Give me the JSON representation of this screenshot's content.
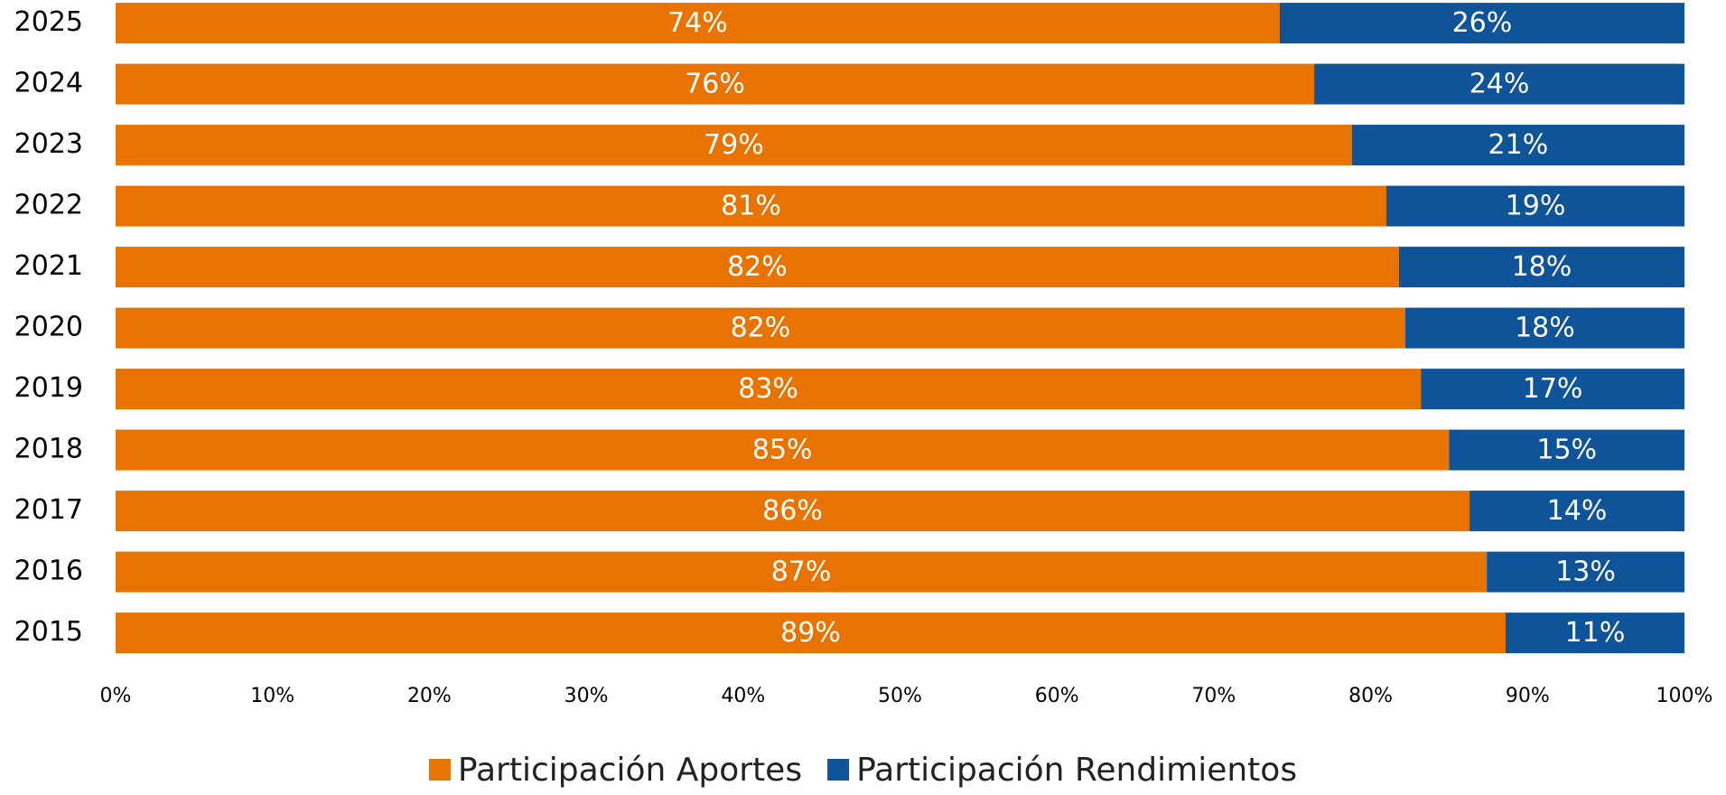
{
  "chart_data": {
    "type": "stacked_barh",
    "categories": [
      "2025",
      "2024",
      "2023",
      "2022",
      "2021",
      "2020",
      "2019",
      "2018",
      "2017",
      "2016",
      "2015"
    ],
    "series": [
      {
        "name": "Participación Aportes",
        "color": "#e97300",
        "values": [
          74.2,
          76.4,
          78.8,
          81.0,
          81.8,
          82.2,
          83.2,
          85.0,
          86.3,
          87.4,
          88.6
        ],
        "value_labels": [
          "74%",
          "76%",
          "79%",
          "81%",
          "82%",
          "82%",
          "83%",
          "85%",
          "86%",
          "87%",
          "89%"
        ]
      },
      {
        "name": "Participación Rendimientos",
        "color": "#0f5499",
        "values": [
          25.8,
          23.6,
          21.2,
          19.0,
          18.2,
          17.8,
          16.8,
          15.0,
          13.7,
          12.6,
          11.4
        ],
        "value_labels": [
          "26%",
          "24%",
          "21%",
          "19%",
          "18%",
          "18%",
          "17%",
          "15%",
          "14%",
          "13%",
          "11%"
        ]
      }
    ],
    "xlim": [
      0,
      100
    ],
    "xticks": [
      {
        "value": 0,
        "label": "0%"
      },
      {
        "value": 10,
        "label": "10%"
      },
      {
        "value": 20,
        "label": "20%"
      },
      {
        "value": 30,
        "label": "30%"
      },
      {
        "value": 40,
        "label": "40%"
      },
      {
        "value": 50,
        "label": "50%"
      },
      {
        "value": 60,
        "label": "60%"
      },
      {
        "value": 70,
        "label": "70%"
      },
      {
        "value": 80,
        "label": "80%"
      },
      {
        "value": 90,
        "label": "90%"
      },
      {
        "value": 100,
        "label": "100%"
      }
    ],
    "legend": "bottom"
  }
}
